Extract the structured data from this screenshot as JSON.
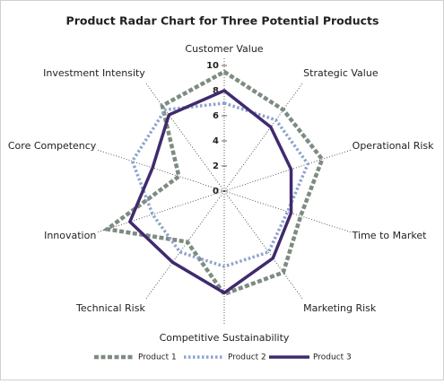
{
  "chart_data": {
    "type": "radar",
    "title": "Product Radar Chart for Three Potential Products",
    "categories": [
      "Customer Value",
      "Strategic Value",
      "Operational Risk",
      "Time to Market",
      "Marketing Risk",
      "Competitive Sustainability",
      "Technical Risk",
      "Innovation",
      "Core Competency",
      "Investment Intensity"
    ],
    "series": [
      {
        "name": "Product 1",
        "color": "#7d8c80",
        "style": "dashed",
        "values": [
          9.5,
          8,
          8.2,
          6.4,
          8,
          8.2,
          5,
          9.8,
          3.8,
          8.4
        ]
      },
      {
        "name": "Product 2",
        "color": "#8ea3cc",
        "style": "dotted",
        "values": [
          7,
          7,
          7,
          5.3,
          6,
          6,
          6,
          6,
          7.7,
          8
        ]
      },
      {
        "name": "Product 3",
        "color": "#402a6e",
        "style": "solid",
        "values": [
          8,
          6.3,
          5.6,
          5.6,
          6.6,
          8.1,
          7,
          7.9,
          6,
          7.5
        ]
      }
    ],
    "ylim": [
      0,
      10
    ],
    "yticks": [
      0,
      2,
      4,
      6,
      8,
      10
    ],
    "legend": "bottom"
  }
}
